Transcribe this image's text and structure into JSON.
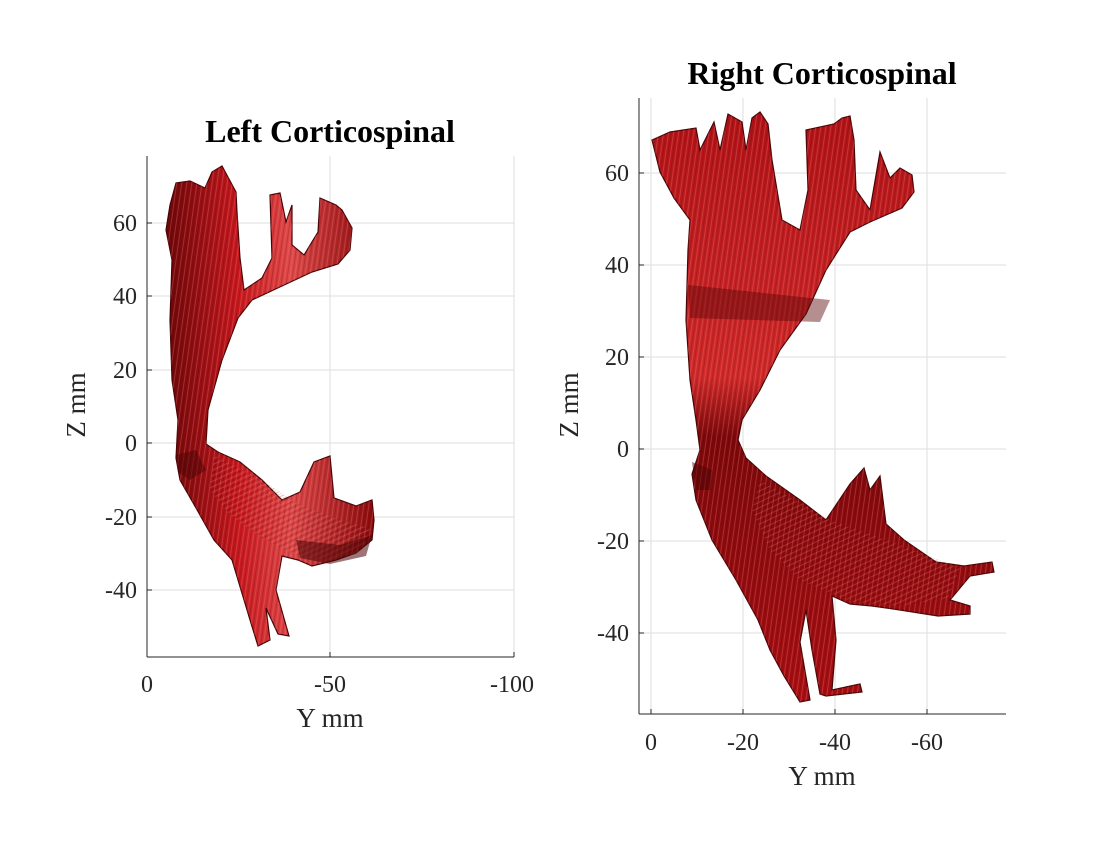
{
  "panels": [
    {
      "title": "Left Corticospinal",
      "xlabel": "Y mm",
      "ylabel": "Z mm",
      "xticks": [
        "0",
        "-50",
        "-100"
      ],
      "yticks": [
        "60",
        "40",
        "20",
        "0",
        "-20",
        "-40"
      ]
    },
    {
      "title": "Right Corticospinal",
      "xlabel": "Y mm",
      "ylabel": "Z mm",
      "xticks": [
        "0",
        "-20",
        "-40",
        "-60"
      ],
      "yticks": [
        "60",
        "40",
        "20",
        "0",
        "-20",
        "-40"
      ]
    }
  ],
  "colors": {
    "tract_main": "#c4161c",
    "tract_dark": "#5e0608",
    "tract_light": "#f07070",
    "axis": "#262626",
    "grid": "#dedede"
  },
  "icons": [
    "fiber-tract-rendering"
  ]
}
